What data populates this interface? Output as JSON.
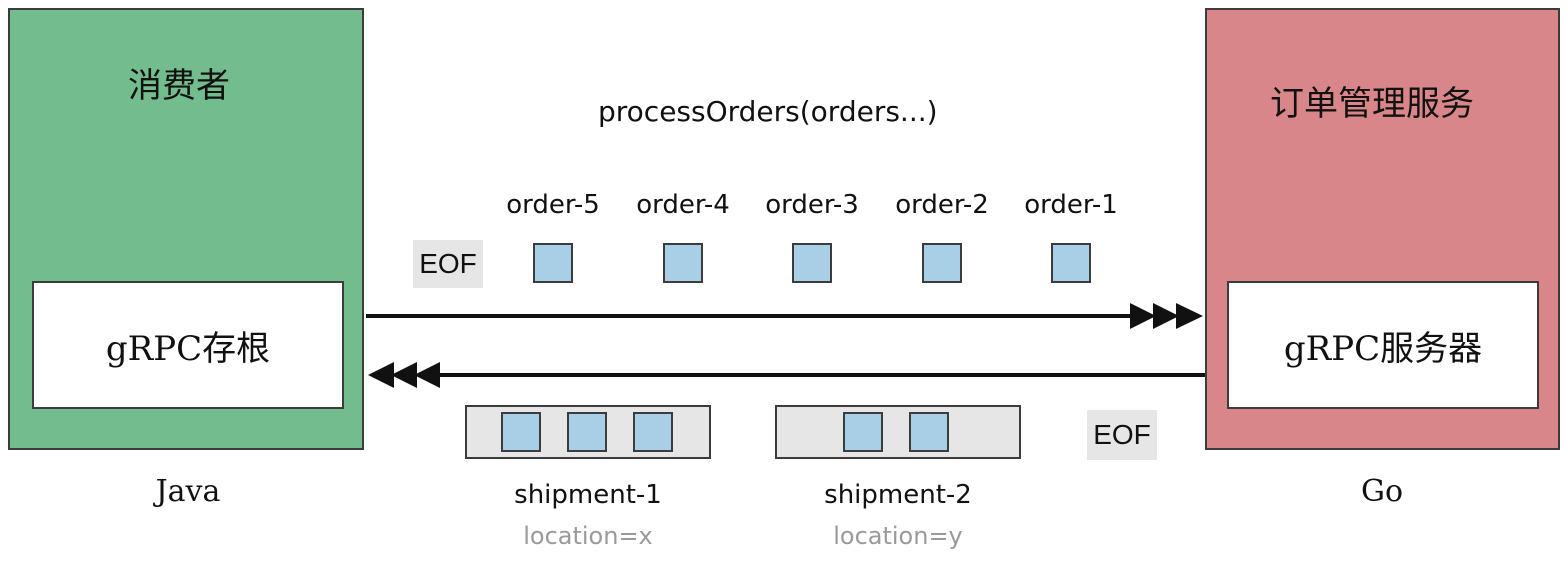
{
  "consumer": {
    "title": "消费者",
    "stub_label": "gRPC存根",
    "language": "Java",
    "fill_color": "#72bc8e"
  },
  "service": {
    "title": "订单管理服务",
    "server_label": "gRPC服务器",
    "language": "Go",
    "fill_color": "#d9868b"
  },
  "request": {
    "method_label": "processOrders(orders...)",
    "eof_label": "EOF",
    "orders": [
      "order-5",
      "order-4",
      "order-3",
      "order-2",
      "order-1"
    ]
  },
  "response": {
    "eof_label": "EOF",
    "shipments": [
      {
        "name": "shipment-1",
        "location": "location=x",
        "message_count": 3
      },
      {
        "name": "shipment-2",
        "location": "location=y",
        "message_count": 2
      }
    ]
  },
  "colors": {
    "message_fill": "#a9cfe6",
    "eof_bg": "#e6e6e6",
    "border": "#3c3c3c"
  }
}
